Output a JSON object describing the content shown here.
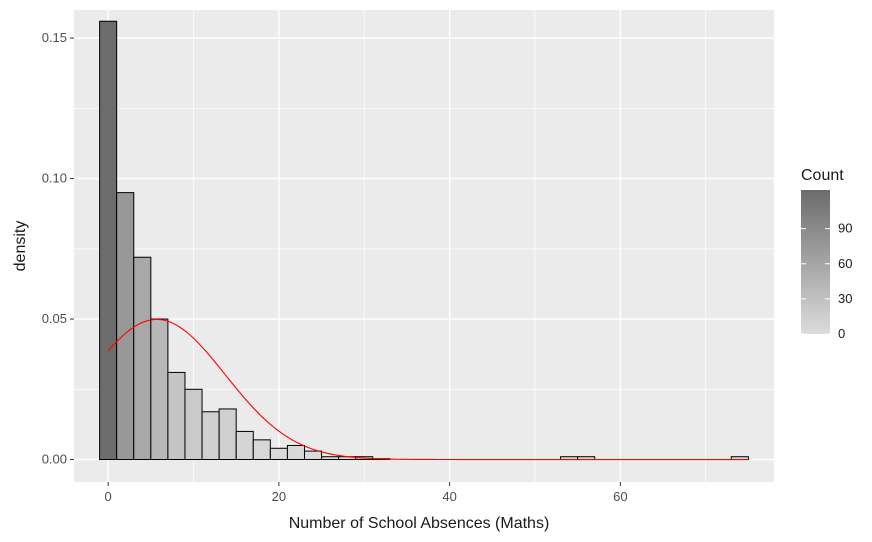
{
  "chart_data": {
    "type": "bar",
    "subtype": "histogram with density curve",
    "title": "",
    "xlabel": "Number of School Absences (Maths)",
    "ylabel": "density",
    "xlim": [
      -4,
      78
    ],
    "ylim": [
      -0.008,
      0.16
    ],
    "x_ticks": [
      0,
      20,
      40,
      60
    ],
    "y_ticks": [
      0.0,
      0.05,
      0.1,
      0.15
    ],
    "y_tick_labels": [
      "0.00",
      "0.05",
      "0.10",
      "0.15"
    ],
    "grid": true,
    "bin_width": 2,
    "bins": [
      {
        "x0": -1,
        "x1": 1,
        "density": 0.156,
        "count": 123
      },
      {
        "x0": 1,
        "x1": 3,
        "density": 0.095,
        "count": 75
      },
      {
        "x0": 3,
        "x1": 5,
        "density": 0.072,
        "count": 57
      },
      {
        "x0": 5,
        "x1": 7,
        "density": 0.05,
        "count": 40
      },
      {
        "x0": 7,
        "x1": 9,
        "density": 0.031,
        "count": 25
      },
      {
        "x0": 9,
        "x1": 11,
        "density": 0.025,
        "count": 20
      },
      {
        "x0": 11,
        "x1": 13,
        "density": 0.017,
        "count": 13
      },
      {
        "x0": 13,
        "x1": 15,
        "density": 0.018,
        "count": 14
      },
      {
        "x0": 15,
        "x1": 17,
        "density": 0.01,
        "count": 8
      },
      {
        "x0": 17,
        "x1": 19,
        "density": 0.007,
        "count": 5
      },
      {
        "x0": 19,
        "x1": 21,
        "density": 0.004,
        "count": 3
      },
      {
        "x0": 21,
        "x1": 23,
        "density": 0.005,
        "count": 4
      },
      {
        "x0": 23,
        "x1": 25,
        "density": 0.003,
        "count": 2
      },
      {
        "x0": 25,
        "x1": 27,
        "density": 0.001,
        "count": 1
      },
      {
        "x0": 27,
        "x1": 29,
        "density": 0.001,
        "count": 1
      },
      {
        "x0": 29,
        "x1": 31,
        "density": 0.001,
        "count": 1
      },
      {
        "x0": 31,
        "x1": 33,
        "density": 0.0003,
        "count": 0
      },
      {
        "x0": 53,
        "x1": 55,
        "density": 0.001,
        "count": 1
      },
      {
        "x0": 55,
        "x1": 57,
        "density": 0.001,
        "count": 1
      },
      {
        "x0": 73,
        "x1": 75,
        "density": 0.001,
        "count": 1
      }
    ],
    "density_curve": {
      "color": "#ff0000",
      "mean": 5.7,
      "sd": 8.0,
      "x_range": [
        0,
        75
      ]
    },
    "legend": {
      "title": "Count",
      "position": "right",
      "ticks": [
        90,
        60,
        30,
        0
      ],
      "range": [
        0,
        123
      ],
      "color_low": "#dcdcdc",
      "color_high": "#6c6c6c"
    },
    "colors": {
      "panel_background": "#ebebeb",
      "grid": "#ffffff",
      "bar_outline": "#000000"
    }
  }
}
